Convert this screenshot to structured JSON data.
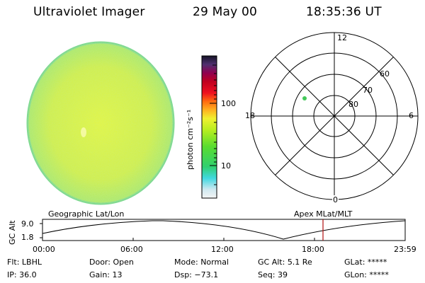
{
  "header": {
    "instrument": "Ultraviolet Imager",
    "date": "29 May 00",
    "time": "18:35:36 UT"
  },
  "colorbar": {
    "unit_label": "photon cm⁻²s⁻¹",
    "ticks": [
      "100",
      "10"
    ]
  },
  "polar_plot": {
    "mlt_labels": {
      "top": "12",
      "left": "18",
      "right": "6",
      "bottom": "0"
    },
    "lat_labels": [
      "60",
      "70",
      "80"
    ]
  },
  "timeline": {
    "ylabel": "GC Alt",
    "yticks": [
      "9.0",
      "1.8"
    ],
    "left_title": "Geographic Lat/Lon",
    "right_title": "Apex MLat/MLT",
    "xticks": [
      "00:00",
      "06:00",
      "12:00",
      "18:00",
      "23:59"
    ],
    "marker_time_hours": 18.6
  },
  "status": {
    "row1": [
      {
        "label": "Flt:",
        "value": "LBHL"
      },
      {
        "label": "Door:",
        "value": "Open"
      },
      {
        "label": "Mode:",
        "value": "Normal"
      },
      {
        "label": "GC Alt:",
        "value": "5.1 Re"
      },
      {
        "label": "GLat:",
        "value": "*****"
      }
    ],
    "row2": [
      {
        "label": "IP:",
        "value": "36.0"
      },
      {
        "label": "Gain:",
        "value": "13"
      },
      {
        "label": "Dsp:",
        "value": "−73.1"
      },
      {
        "label": "Seq:",
        "value": "39"
      },
      {
        "label": "GLon:",
        "value": "*****"
      }
    ]
  },
  "colors": {
    "disk_main": "#d8f23a",
    "disk_edge": "#6fd68a",
    "marker_line": "#b01010",
    "polar_dot": "#44c85a"
  }
}
